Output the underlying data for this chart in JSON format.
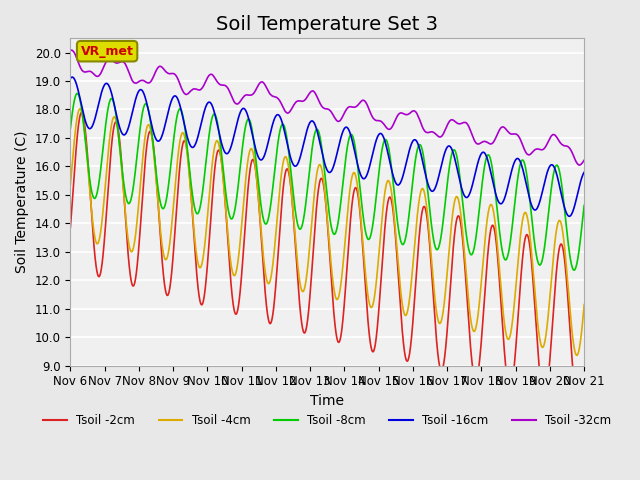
{
  "title": "Soil Temperature Set 3",
  "xlabel": "Time",
  "ylabel": "Soil Temperature (C)",
  "ylim": [
    9.0,
    20.5
  ],
  "yticks": [
    9.0,
    10.0,
    11.0,
    12.0,
    13.0,
    14.0,
    15.0,
    16.0,
    17.0,
    18.0,
    19.0,
    20.0
  ],
  "xlim_days": [
    0,
    15
  ],
  "background_color": "#e8e8e8",
  "plot_bg_color": "#f0f0f0",
  "grid_color": "white",
  "series": [
    {
      "label": "Tsoil -2cm",
      "color": "#dd2222"
    },
    {
      "label": "Tsoil -4cm",
      "color": "#ddaa00"
    },
    {
      "label": "Tsoil -8cm",
      "color": "#00cc00"
    },
    {
      "label": "Tsoil -16cm",
      "color": "#0000dd"
    },
    {
      "label": "Tsoil -32cm",
      "color": "#aa00cc"
    }
  ],
  "annotation_text": "VR_met",
  "annotation_color": "#cc0000",
  "annotation_bg": "#dddd00",
  "x_tick_labels": [
    "Nov 6",
    "Nov 7",
    "Nov 8",
    "Nov 9",
    "Nov 10",
    "Nov 11",
    "Nov 12",
    "Nov 13",
    "Nov 14",
    "Nov 15",
    "Nov 16",
    "Nov 17",
    "Nov 18",
    "Nov 19",
    "Nov 20",
    "Nov 21"
  ],
  "title_fontsize": 14,
  "axis_label_fontsize": 10,
  "tick_fontsize": 8.5
}
